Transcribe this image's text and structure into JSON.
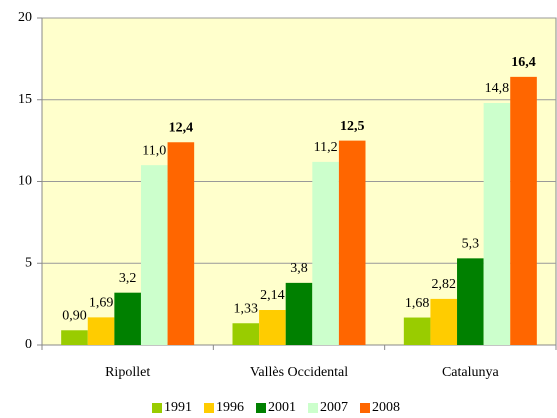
{
  "chart_data": {
    "type": "bar",
    "categories": [
      "Ripollet",
      "Vallès Occidental",
      "Catalunya"
    ],
    "series": [
      {
        "name": "1991",
        "color": "#99cc00",
        "values": [
          0.9,
          1.33,
          1.68
        ],
        "value_labels": [
          "0,90",
          "1,33",
          "1,68"
        ]
      },
      {
        "name": "1996",
        "color": "#ffcc00",
        "values": [
          1.69,
          2.14,
          2.82
        ],
        "value_labels": [
          "1,69",
          "2,14",
          "2,82"
        ]
      },
      {
        "name": "2001",
        "color": "#008000",
        "values": [
          3.2,
          3.8,
          5.3
        ],
        "value_labels": [
          "3,2",
          "3,8",
          "5,3"
        ]
      },
      {
        "name": "2007",
        "color": "#ccffcc",
        "values": [
          11.0,
          11.2,
          14.8
        ],
        "value_labels": [
          "11,0",
          "11,2",
          "14,8"
        ]
      },
      {
        "name": "2008",
        "color": "#ff6600",
        "values": [
          12.4,
          12.5,
          16.4
        ],
        "value_labels": [
          "12,4",
          "12,5",
          "16,4"
        ]
      }
    ],
    "ylim": [
      0,
      20
    ],
    "yticks": [
      0,
      5,
      10,
      15,
      20
    ],
    "grid": true,
    "legend": "bottom"
  }
}
